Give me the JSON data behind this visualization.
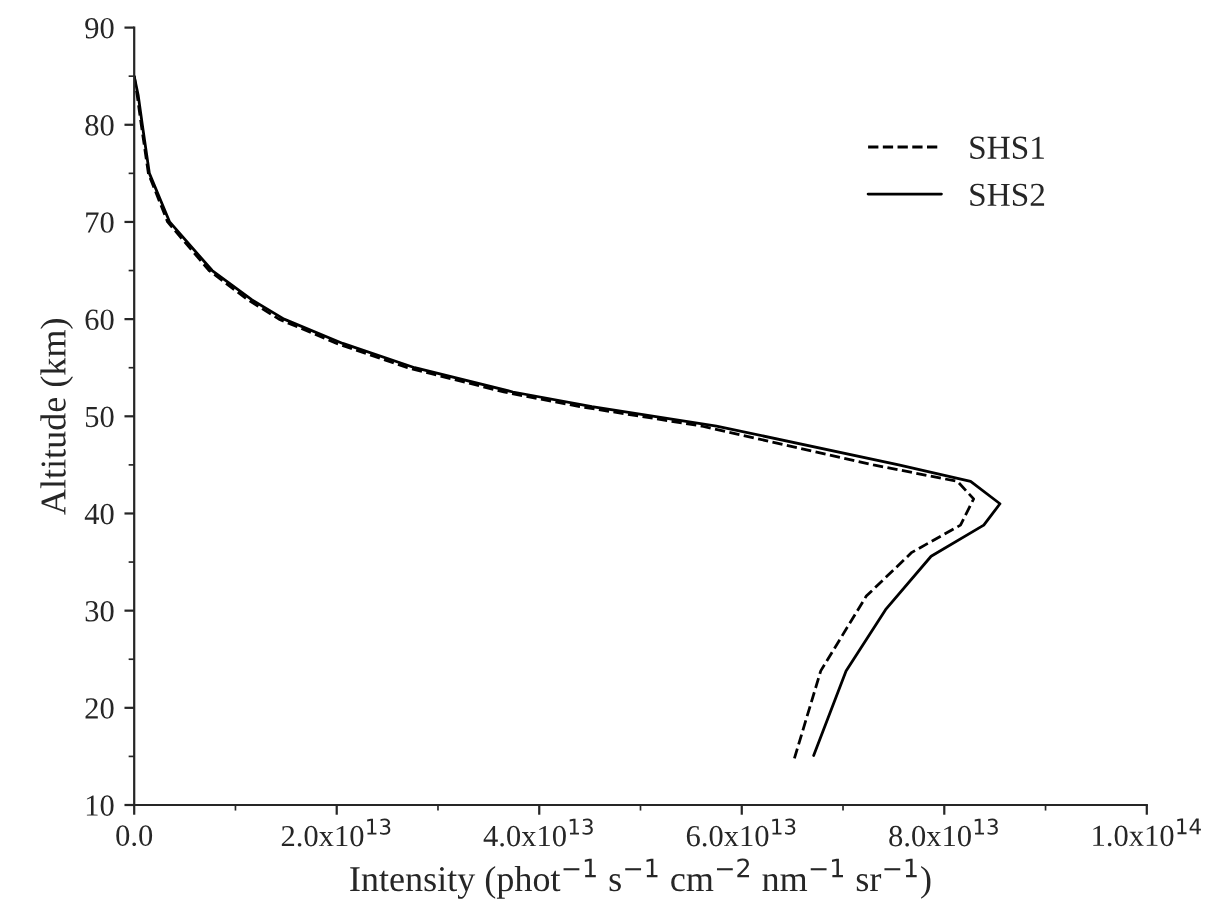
{
  "chart_data": {
    "type": "line",
    "xlabel": "Intensity (phot$^{−1}$ s$^{−1}$ cm$^{−2}$ nm$^{−1}$ sr$^{−1}$)",
    "ylabel": "Altitude (km)",
    "xlim": [
      0,
      100000000000000.0
    ],
    "ylim": [
      10,
      90
    ],
    "xticks": [
      {
        "value": 0,
        "label": "0.0"
      },
      {
        "value": 20000000000000.0,
        "label": "2.0x10$^{13}$"
      },
      {
        "value": 40000000000000.0,
        "label": "4.0x10$^{13}$"
      },
      {
        "value": 60000000000000.0,
        "label": "6.0x10$^{13}$"
      },
      {
        "value": 80000000000000.0,
        "label": "8.0x10$^{13}$"
      },
      {
        "value": 100000000000000.0,
        "label": "1.0x10$^{14}$"
      }
    ],
    "yticks": [
      10,
      20,
      30,
      40,
      50,
      60,
      70,
      80,
      90
    ],
    "grid": false,
    "legend": "top right",
    "series": [
      {
        "name": "SHS1",
        "color": "#000000",
        "line_style": "dashed",
        "x": [
          0,
          300000000000.0,
          700000000000.0,
          1400000000000.0,
          3300000000000.0,
          7400000000000.0,
          11200000000000.0,
          14300000000000.0,
          20000000000000.0,
          27000000000000.0,
          36500000000000.0,
          44000000000000.0,
          56000000000000.0,
          73000000000000.0,
          81300000000000.0,
          82900000000000.0,
          81600000000000.0,
          76800000000000.0,
          72300000000000.0,
          67800000000000.0,
          65200000000000.0
        ],
        "values": [
          85,
          83,
          80,
          75,
          70,
          65,
          62,
          60,
          57.5,
          55,
          52.5,
          51,
          49,
          45,
          43.3,
          41.5,
          38.8,
          36.0,
          31.5,
          23.8,
          14.8
        ]
      },
      {
        "name": "SHS2",
        "color": "#000000",
        "line_style": "solid",
        "x": [
          0,
          400000000000.0,
          800000000000.0,
          1500000000000.0,
          3500000000000.0,
          7700000000000.0,
          11600000000000.0,
          14800000000000.0,
          20600000000000.0,
          27700000000000.0,
          37400000000000.0,
          45200000000000.0,
          57500000000000.0,
          75500000000000.0,
          82600000000000.0,
          85500000000000.0,
          83900000000000.0,
          78700000000000.0,
          74200000000000.0,
          70300000000000.0,
          67100000000000.0
        ],
        "values": [
          85,
          83,
          80,
          75,
          70,
          65,
          62,
          60,
          57.5,
          55,
          52.5,
          51,
          49,
          45,
          43.3,
          41.0,
          38.8,
          35.6,
          30.1,
          23.8,
          15.1
        ]
      }
    ]
  }
}
